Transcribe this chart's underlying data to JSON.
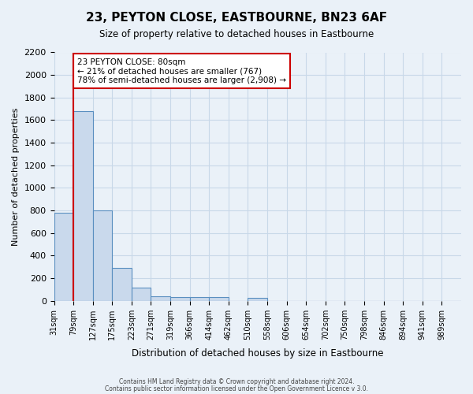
{
  "title": "23, PEYTON CLOSE, EASTBOURNE, BN23 6AF",
  "subtitle": "Size of property relative to detached houses in Eastbourne",
  "xlabel": "Distribution of detached houses by size in Eastbourne",
  "ylabel": "Number of detached properties",
  "bin_labels": [
    "31sqm",
    "79sqm",
    "127sqm",
    "175sqm",
    "223sqm",
    "271sqm",
    "319sqm",
    "366sqm",
    "414sqm",
    "462sqm",
    "510sqm",
    "558sqm",
    "606sqm",
    "654sqm",
    "702sqm",
    "750sqm",
    "798sqm",
    "846sqm",
    "894sqm",
    "941sqm",
    "989sqm"
  ],
  "bar_values": [
    780,
    1680,
    800,
    295,
    115,
    40,
    35,
    30,
    30,
    0,
    25,
    0,
    0,
    0,
    0,
    0,
    0,
    0,
    0,
    0,
    0
  ],
  "bar_color": "#c9d9ec",
  "bar_edge_color": "#5a8fc0",
  "property_line_color": "#cc0000",
  "annotation_box_text": "23 PEYTON CLOSE: 80sqm\n← 21% of detached houses are smaller (767)\n78% of semi-detached houses are larger (2,908) →",
  "annotation_box_edge_color": "#cc0000",
  "annotation_box_facecolor": "#ffffff",
  "ylim": [
    0,
    2200
  ],
  "yticks": [
    0,
    200,
    400,
    600,
    800,
    1000,
    1200,
    1400,
    1600,
    1800,
    2000,
    2200
  ],
  "grid_color": "#c8d8e8",
  "bg_color": "#eaf1f8",
  "footer_line1": "Contains HM Land Registry data © Crown copyright and database right 2024.",
  "footer_line2": "Contains public sector information licensed under the Open Government Licence v 3.0."
}
